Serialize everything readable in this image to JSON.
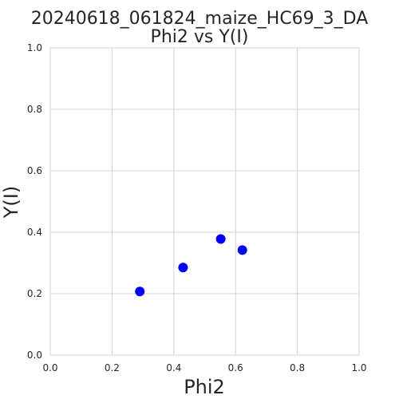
{
  "chart_data": {
    "type": "scatter",
    "title": "20240618_061824_maize_HC69_3_DA",
    "subtitle": "Phi2 vs Y(I)",
    "xlabel": "Phi2",
    "ylabel": "Y(I)",
    "xlim": [
      0.0,
      1.0
    ],
    "ylim": [
      0.0,
      1.0
    ],
    "xticks": [
      "0.0",
      "0.2",
      "0.4",
      "0.6",
      "0.8",
      "1.0"
    ],
    "yticks": [
      "0.0",
      "0.2",
      "0.4",
      "0.6",
      "0.8",
      "1.0"
    ],
    "grid": true,
    "marker_color": "#0000ff",
    "points": [
      {
        "x": 0.29,
        "y": 0.207
      },
      {
        "x": 0.43,
        "y": 0.285
      },
      {
        "x": 0.552,
        "y": 0.378
      },
      {
        "x": 0.622,
        "y": 0.342
      }
    ]
  }
}
